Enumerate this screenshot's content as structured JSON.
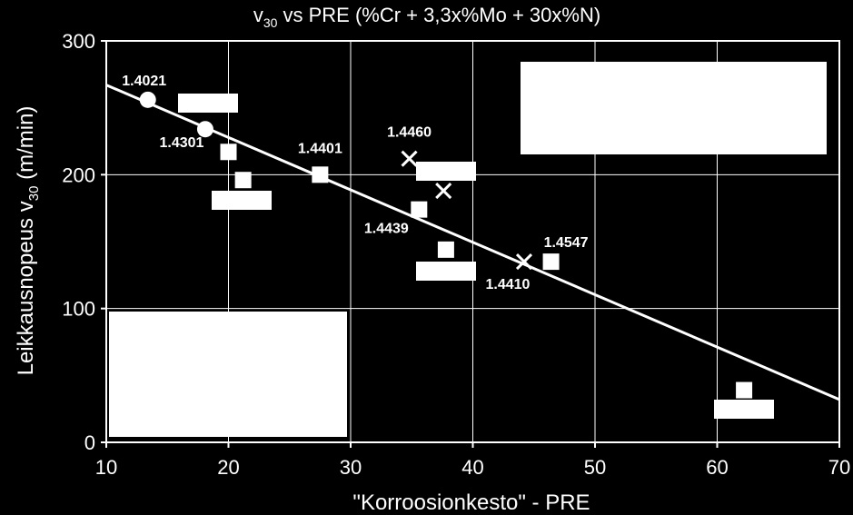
{
  "chart_data": {
    "type": "scatter",
    "title_main": "v",
    "title_sub": "30",
    "title_rest": " vs PRE (%Cr + 3,3x%Mo + 30x%N)",
    "xlabel": "\"Korroosionkesto\" - PRE",
    "ylabel_main": "Leikkausnopeus v",
    "ylabel_sub": "30",
    "ylabel_rest": " (m/min)",
    "xlim": [
      10,
      70
    ],
    "ylim": [
      0,
      300
    ],
    "x_ticks": [
      "10",
      "20",
      "30",
      "40",
      "50",
      "60",
      "70"
    ],
    "y_ticks": [
      "0",
      "100",
      "200",
      "300"
    ],
    "grid": true,
    "series": [
      {
        "marker": "circle",
        "points": [
          {
            "x": 13.4,
            "y": 256,
            "label": "1.4021"
          },
          {
            "x": 18.1,
            "y": 234,
            "label": "1.4301"
          }
        ]
      },
      {
        "marker": "square",
        "points": [
          {
            "x": 20.0,
            "y": 217,
            "label": ""
          },
          {
            "x": 21.2,
            "y": 196,
            "label": ""
          },
          {
            "x": 27.5,
            "y": 200,
            "label": "1.4401"
          },
          {
            "x": 35.6,
            "y": 174,
            "label": "1.4439"
          },
          {
            "x": 37.8,
            "y": 144,
            "label": ""
          },
          {
            "x": 46.4,
            "y": 135,
            "label": "1.4547"
          },
          {
            "x": 62.2,
            "y": 39,
            "label": ""
          }
        ]
      },
      {
        "marker": "cross",
        "points": [
          {
            "x": 34.8,
            "y": 212,
            "label": "1.4460"
          },
          {
            "x": 37.6,
            "y": 188,
            "label": ""
          },
          {
            "x": 44.2,
            "y": 135,
            "label": "1.4410"
          }
        ]
      }
    ],
    "trendline": {
      "x": [
        10,
        70
      ],
      "y": [
        267,
        32
      ]
    },
    "colors": {
      "background": "#000000",
      "foreground": "#ffffff"
    }
  }
}
